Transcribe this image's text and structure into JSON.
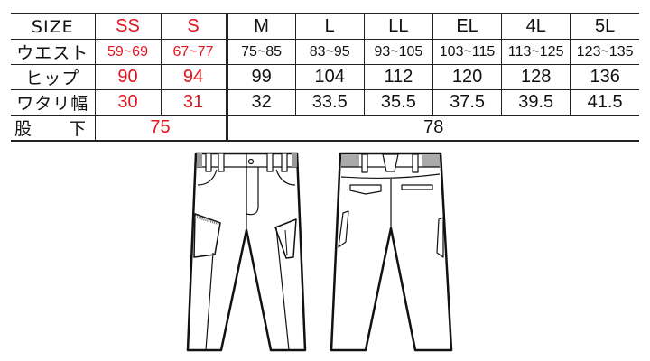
{
  "headers": {
    "label": "SIZE",
    "sizes": [
      "SS",
      "S",
      "M",
      "L",
      "LL",
      "EL",
      "4L",
      "5L"
    ]
  },
  "rows": [
    {
      "label": "ウエスト",
      "values": [
        "59~69",
        "67~77",
        "75~85",
        "83~95",
        "93~105",
        "103~115",
        "113~125",
        "123~135"
      ]
    },
    {
      "label": "ヒップ",
      "values": [
        "90",
        "94",
        "99",
        "104",
        "112",
        "120",
        "128",
        "136"
      ]
    },
    {
      "label": "ワタリ幅",
      "values": [
        "30",
        "31",
        "32",
        "33.5",
        "35.5",
        "37.5",
        "39.5",
        "41.5"
      ]
    }
  ],
  "inseam": {
    "label": "股　　下",
    "small_value": "75",
    "large_value": "78"
  },
  "colors": {
    "highlight": "#e0141e",
    "text": "#111111"
  },
  "illustrations": [
    "pants-front",
    "pants-back"
  ]
}
